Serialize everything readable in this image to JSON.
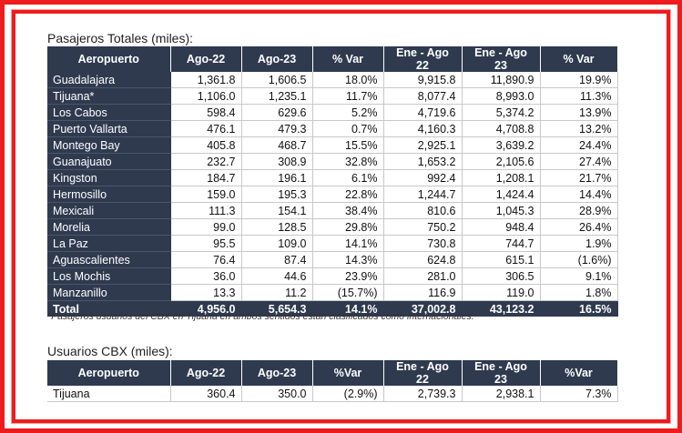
{
  "title1": "Pasajeros Totales (miles):",
  "headers": [
    "Aeropuerto",
    "Ago-22",
    "Ago-23",
    "% Var",
    "Ene - Ago 22",
    "Ene - Ago 23",
    "% Var"
  ],
  "rows": [
    [
      "Guadalajara",
      "1,361.8",
      "1,606.5",
      "18.0%",
      "9,915.8",
      "11,890.9",
      "19.9%"
    ],
    [
      "Tijuana*",
      "1,106.0",
      "1,235.1",
      "11.7%",
      "8,077.4",
      "8,993.0",
      "11.3%"
    ],
    [
      "Los Cabos",
      "598.4",
      "629.6",
      "5.2%",
      "4,719.6",
      "5,374.2",
      "13.9%"
    ],
    [
      "Puerto Vallarta",
      "476.1",
      "479.3",
      "0.7%",
      "4,160.3",
      "4,708.8",
      "13.2%"
    ],
    [
      "Montego Bay",
      "405.8",
      "468.7",
      "15.5%",
      "2,925.1",
      "3,639.2",
      "24.4%"
    ],
    [
      "Guanajuato",
      "232.7",
      "308.9",
      "32.8%",
      "1,653.2",
      "2,105.6",
      "27.4%"
    ],
    [
      "Kingston",
      "184.7",
      "196.1",
      "6.1%",
      "992.4",
      "1,208.1",
      "21.7%"
    ],
    [
      "Hermosillo",
      "159.0",
      "195.3",
      "22.8%",
      "1,244.7",
      "1,424.4",
      "14.4%"
    ],
    [
      "Mexicali",
      "111.3",
      "154.1",
      "38.4%",
      "810.6",
      "1,045.3",
      "28.9%"
    ],
    [
      "Morelia",
      "99.0",
      "128.5",
      "29.8%",
      "750.2",
      "948.4",
      "26.4%"
    ],
    [
      "La Paz",
      "95.5",
      "109.0",
      "14.1%",
      "730.8",
      "744.7",
      "1.9%"
    ],
    [
      "Aguascalientes",
      "76.4",
      "87.4",
      "14.3%",
      "624.8",
      "615.1",
      "(1.6%)"
    ],
    [
      "Los Mochis",
      "36.0",
      "44.6",
      "23.9%",
      "281.0",
      "306.5",
      "9.1%"
    ],
    [
      "Manzanillo",
      "13.3",
      "11.2",
      "(15.7%)",
      "116.9",
      "119.0",
      "1.8%"
    ]
  ],
  "total": [
    "Total",
    "4,956.0",
    "5,654.3",
    "14.1%",
    "37,002.8",
    "43,123.2",
    "16.5%"
  ],
  "note": "*Pasajeros usuarios del CBX en Tijuana en ambos sentidos están clasificados como internacionales.",
  "title2": "Usuarios CBX (miles):",
  "headers2": [
    "Aeropuerto",
    "Ago-22",
    "Ago-23",
    "%Var",
    "Ene - Ago 22",
    "Ene - Ago 23",
    "%Var"
  ],
  "rows2": [
    [
      "Tijuana",
      "360.4",
      "350.0",
      "(2.9%)",
      "2,739.3",
      "2,938.1",
      "7.3%"
    ]
  ],
  "colors": {
    "frame": "#ee1c1c",
    "header_bg": "#2f3a4f",
    "header_text": "#ffffff"
  }
}
